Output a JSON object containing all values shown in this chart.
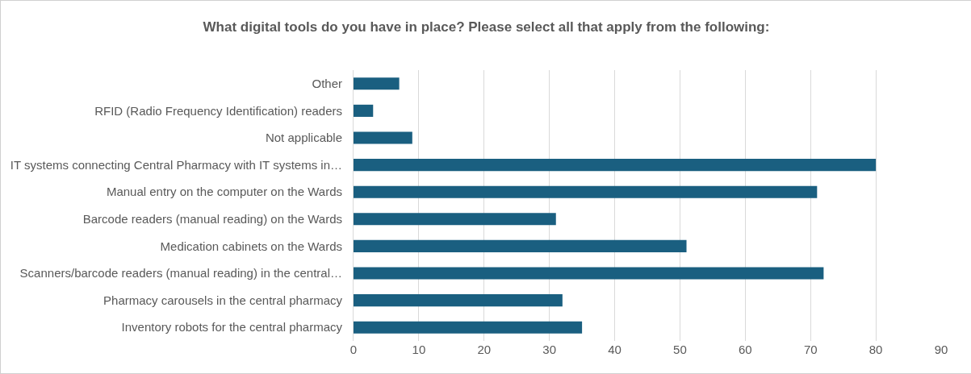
{
  "chart_data": {
    "type": "bar",
    "orientation": "horizontal",
    "title": "What digital tools do you have in place? Please select all that apply from the following:",
    "categories": [
      "Other",
      "RFID (Radio Frequency Identification) readers",
      "Not applicable",
      "IT systems connecting Central Pharmacy with IT systems in…",
      "Manual entry on the computer on the Wards",
      "Barcode readers (manual reading) on the Wards",
      "Medication cabinets on the Wards",
      "Scanners/barcode readers (manual reading) in the central…",
      "Pharmacy carousels in the central pharmacy",
      "Inventory robots for the central pharmacy"
    ],
    "values": [
      7,
      3,
      9,
      80,
      71,
      31,
      51,
      72,
      32,
      35
    ],
    "color": "#1a5f80",
    "xlim": [
      0,
      90
    ],
    "xticks": [
      0,
      10,
      20,
      30,
      40,
      50,
      60,
      70,
      80,
      90
    ],
    "grid": "x"
  }
}
